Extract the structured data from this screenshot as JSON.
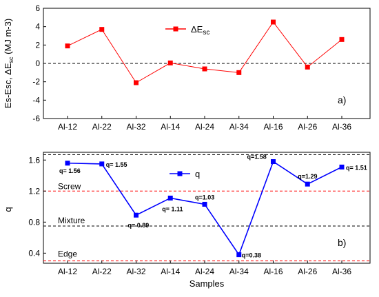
{
  "chart_data": [
    {
      "type": "line",
      "panel_label": "a)",
      "categories": [
        "Al-12",
        "Al-22",
        "Al-32",
        "Al-14",
        "Al-24",
        "Al-34",
        "Al-16",
        "Al-26",
        "Al-36"
      ],
      "series": [
        {
          "name": "ΔEsc",
          "color": "#ff0000",
          "marker": "square",
          "values": [
            1.9,
            3.7,
            -2.1,
            0.05,
            -0.6,
            -1.0,
            4.5,
            -0.4,
            2.6
          ]
        }
      ],
      "ylabel": "Es-Esc, ΔEsc (MJ m-3)",
      "ylim": [
        -6,
        6
      ],
      "yticks": [
        "-6",
        "-4",
        "-2",
        "0",
        "2",
        "4",
        "6"
      ],
      "reference_lines": [
        {
          "y": 0,
          "color": "#000000",
          "style": "dashed"
        }
      ],
      "legend": "top-center",
      "grid": false
    },
    {
      "type": "line",
      "panel_label": "b)",
      "categories": [
        "Al-12",
        "Al-22",
        "Al-32",
        "Al-14",
        "Al-24",
        "Al-34",
        "Al-16",
        "Al-26",
        "Al-36"
      ],
      "series": [
        {
          "name": "q",
          "color": "#0000ff",
          "marker": "square",
          "values": [
            1.56,
            1.55,
            0.89,
            1.11,
            1.03,
            0.38,
            1.58,
            1.29,
            1.51
          ]
        }
      ],
      "data_labels": [
        "q= 1.56",
        "q= 1.55",
        "q= 0.89",
        "q= 1.11",
        "q=1.03",
        "q=0.38",
        "q=1.58",
        "q=1.29",
        "q= 1.51"
      ],
      "xlabel": "Samples",
      "ylabel": "q",
      "ylim": [
        0.27,
        1.7
      ],
      "yticks": [
        "0.4",
        "0.8",
        "1.2",
        "1.6"
      ],
      "reference_lines": [
        {
          "y": 1.67,
          "color": "#000000",
          "style": "dashed"
        },
        {
          "y": 1.2,
          "color": "#ff0000",
          "style": "dashed"
        },
        {
          "y": 0.75,
          "color": "#000000",
          "style": "dashed"
        },
        {
          "y": 0.3,
          "color": "#ff0000",
          "style": "dashed"
        }
      ],
      "regions": [
        {
          "label": "Screw",
          "y": 1.2
        },
        {
          "label": "Mixture",
          "y": 0.75
        },
        {
          "label": "Edge",
          "y": 0.3
        }
      ],
      "legend": "top-center",
      "grid": false
    }
  ]
}
